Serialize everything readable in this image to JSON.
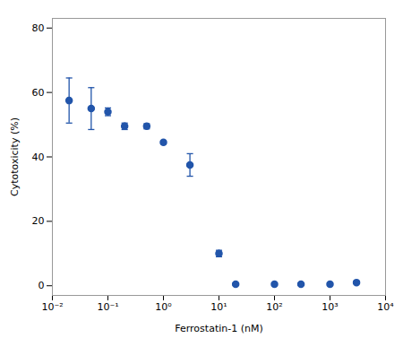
{
  "chart_data": {
    "type": "scatter",
    "x": [
      0.02,
      0.05,
      0.1,
      0.2,
      0.5,
      1.0,
      3.0,
      10.0,
      20.0,
      100.0,
      300.0,
      1000.0,
      3000.0
    ],
    "values": [
      57.5,
      55.0,
      54.0,
      49.5,
      49.5,
      44.5,
      37.5,
      10.0,
      0.5,
      0.5,
      0.5,
      0.5,
      1.0
    ],
    "yerr": [
      7.0,
      6.5,
      1.2,
      1.0,
      0.8,
      0.5,
      3.5,
      1.0,
      0.3,
      0.3,
      0.3,
      0.3,
      0.3
    ],
    "color": "#2255aa",
    "marker": "o",
    "xlabel": "Ferrostatin-1 (nM)",
    "ylabel": "Cytotoxicity (%)",
    "log": "x",
    "xlim": [
      0.01,
      10000
    ],
    "xticks": [
      {
        "value": 0.01,
        "label": "10⁻²"
      },
      {
        "value": 0.1,
        "label": "10⁻¹"
      },
      {
        "value": 1,
        "label": "10⁰"
      },
      {
        "value": 10,
        "label": "10¹"
      },
      {
        "value": 100,
        "label": "10²"
      },
      {
        "value": 1000,
        "label": "10³"
      },
      {
        "value": 10000,
        "label": "10⁴"
      }
    ],
    "ylim": [
      -3,
      83
    ],
    "yticks": [
      0,
      20,
      40,
      60,
      80
    ]
  }
}
